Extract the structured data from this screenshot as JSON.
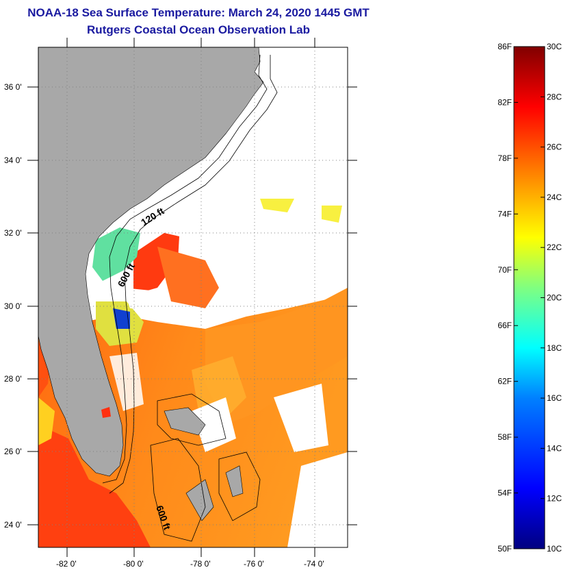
{
  "title": "NOAA-18 Sea Surface Temperature:  March 24, 2020 1445 GMT",
  "subtitle": "Rutgers Coastal Ocean Observation Lab",
  "lat_labels": [
    "36 0'",
    "34 0'",
    "32 0'",
    "30 0'",
    "28 0'",
    "26 0'",
    "24 0'"
  ],
  "lon_labels": [
    "-82 0'",
    "-80 0'",
    "-78 0'",
    "-76 0'",
    "-74 0'"
  ],
  "contour_labels": [
    "120 ft",
    "600 ft",
    "600 ft"
  ],
  "colorbar": {
    "f_labels": [
      "86F",
      "82F",
      "78F",
      "74F",
      "70F",
      "66F",
      "62F",
      "58F",
      "54F",
      "50F"
    ],
    "c_labels": [
      "30C",
      "28C",
      "26C",
      "24C",
      "22C",
      "20C",
      "18C",
      "16C",
      "14C",
      "12C",
      "10C"
    ],
    "range_c": [
      10,
      30
    ],
    "stops": [
      "#000080",
      "#0000ff",
      "#0080ff",
      "#00ffff",
      "#80ff80",
      "#ffff00",
      "#ff8000",
      "#ff0000",
      "#800000"
    ]
  },
  "colors": {
    "land": "#a8a8a8",
    "water_no_data": "#ffffff",
    "title": "#1a1aa0"
  }
}
